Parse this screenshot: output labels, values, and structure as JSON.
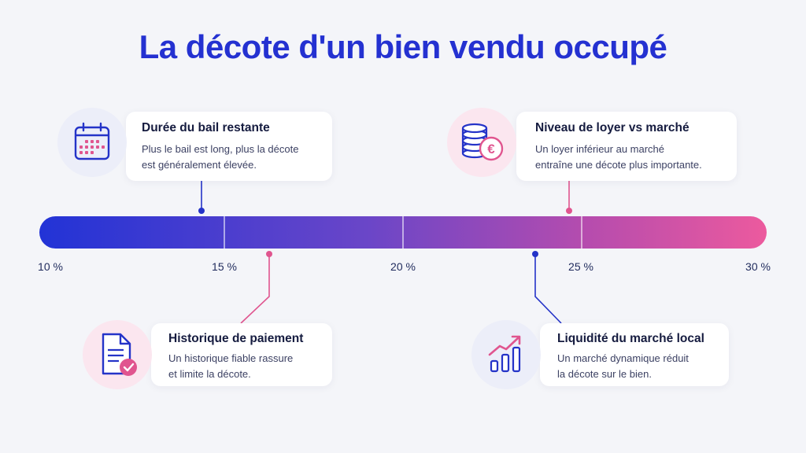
{
  "title": "La décote d'un bien vendu occupé",
  "scale": {
    "ticks": [
      "10 %",
      "15 %",
      "20 %",
      "25 %",
      "30 %"
    ]
  },
  "factors": [
    {
      "title": "Durée du bail restante",
      "lines": [
        "Plus le bail est long, plus la décote",
        "est généralement élevée."
      ],
      "icon": "calendar-icon",
      "marker_percent": 14.6,
      "color": "#2433c8"
    },
    {
      "title": "Niveau de loyer vs marché",
      "lines": [
        "Un loyer inférieur au marché",
        "entraîne une décote plus importante."
      ],
      "icon": "coins-euro-icon",
      "marker_percent": 24.7,
      "color": "#e0558f"
    },
    {
      "title": "Historique de paiement",
      "lines": [
        "Un historique fiable rassure",
        "et limite la décote."
      ],
      "icon": "document-check-icon",
      "marker_percent": 16.3,
      "color": "#e0558f"
    },
    {
      "title": "Liquidité du marché local",
      "lines": [
        "Un marché dynamique réduit",
        "la décote sur le bien."
      ],
      "icon": "trending-chart-icon",
      "marker_percent": 23.6,
      "color": "#2433c8"
    }
  ],
  "colors": {
    "title": "#2431d1",
    "blue": "#2433c8",
    "pink": "#e0558f",
    "gradient_start": "#2233d6",
    "gradient_end": "#ec5a9e"
  }
}
